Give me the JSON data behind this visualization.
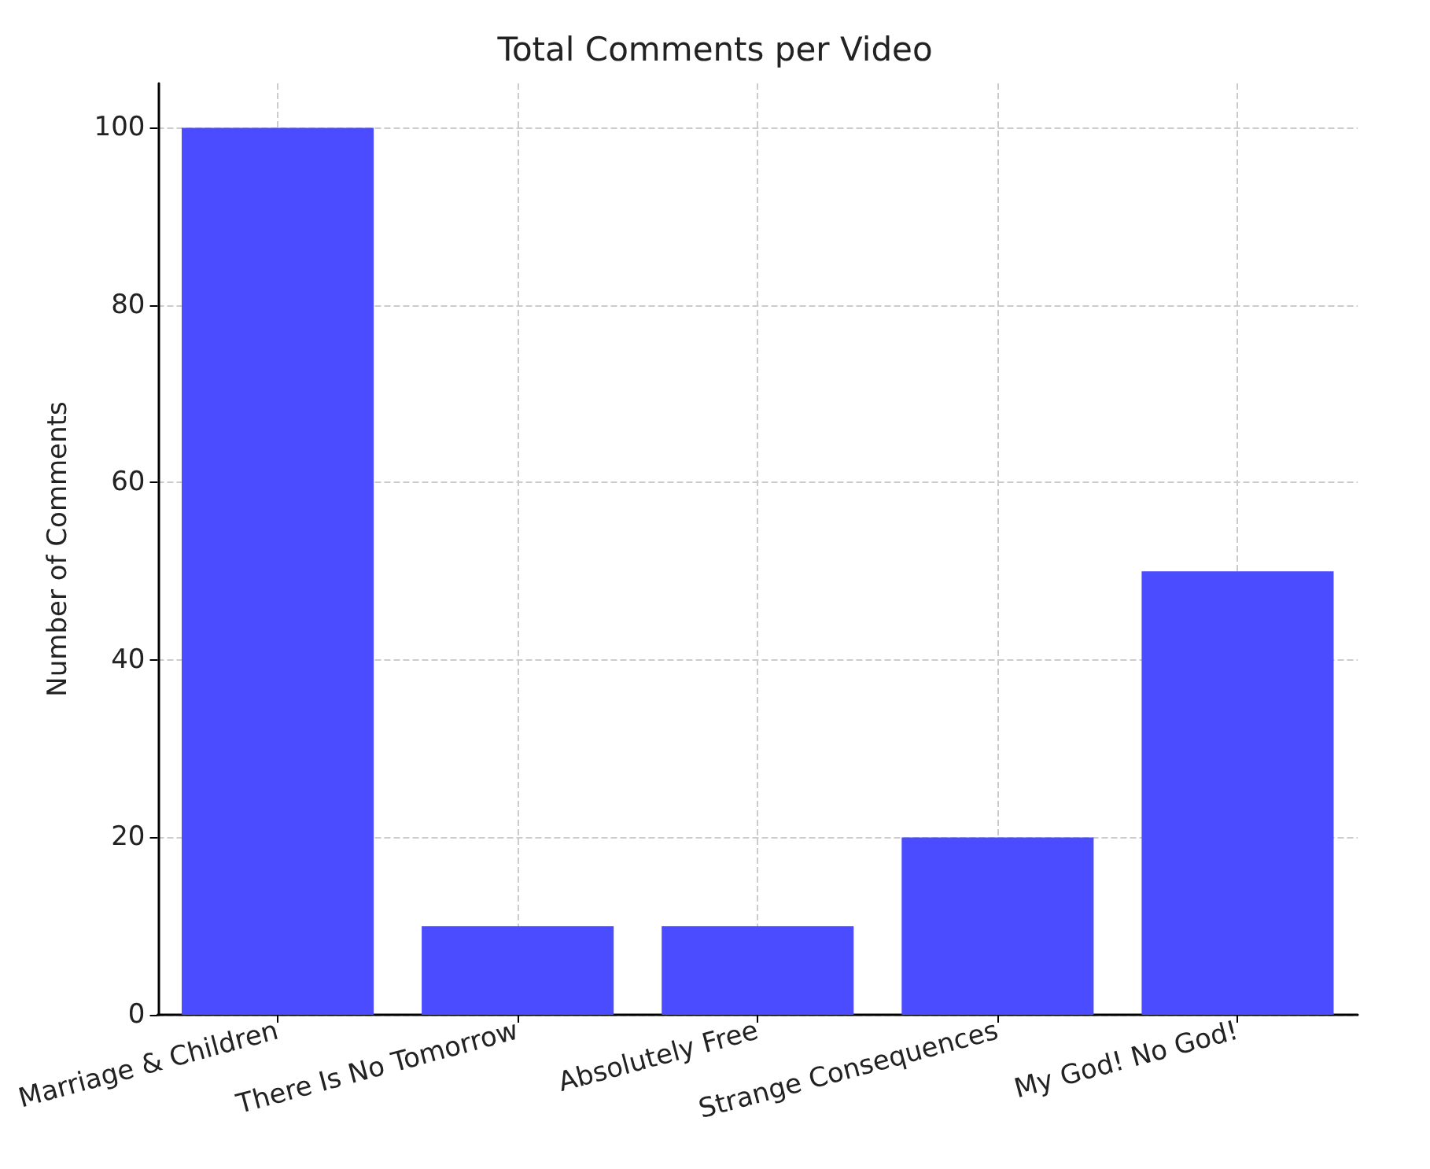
{
  "chart_data": {
    "type": "bar",
    "title": "Total Comments per Video",
    "ylabel": "Number of Comments",
    "categories": [
      "Marriage & Children",
      "There Is No Tomorrow",
      "Absolutely Free",
      "Strange Consequences",
      "My God! No God!"
    ],
    "values": [
      100,
      10,
      10,
      20,
      50
    ],
    "color": "#4b4bff",
    "ylim": [
      0,
      105
    ],
    "yticks": [
      0,
      20,
      40,
      60,
      80,
      100
    ],
    "grid": true
  }
}
